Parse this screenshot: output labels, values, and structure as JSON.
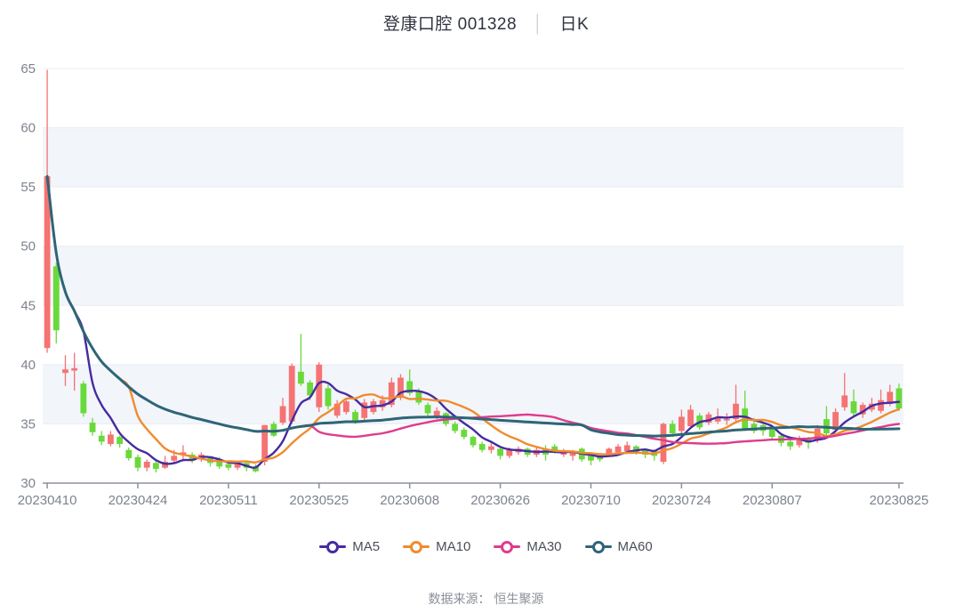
{
  "title": {
    "stock": "登康口腔 001328",
    "separator": "│",
    "kind": "日K"
  },
  "footer": {
    "text": "数据来源： 恒生聚源"
  },
  "chart_data": {
    "type": "candlestick",
    "title": "登康口腔 001328 日K",
    "up_color": "#f57373",
    "down_color": "#69d93b",
    "band_color": "#f2f5fa",
    "gridline_color": "#e9edf4",
    "axis_color": "#8b919b",
    "label_color": "#7d838d",
    "grid_bands": true,
    "legend_position": "bottom",
    "y_axis": {
      "min": 30,
      "max": 65,
      "step": 5
    },
    "x_ticks": [
      {
        "index": 0,
        "label": "20230410"
      },
      {
        "index": 10,
        "label": "20230424"
      },
      {
        "index": 20,
        "label": "20230511"
      },
      {
        "index": 30,
        "label": "20230525"
      },
      {
        "index": 40,
        "label": "20230608"
      },
      {
        "index": 50,
        "label": "20230626"
      },
      {
        "index": 60,
        "label": "20230710"
      },
      {
        "index": 70,
        "label": "20230724"
      },
      {
        "index": 80,
        "label": "20230807"
      },
      {
        "index": 94,
        "label": "20230825"
      }
    ],
    "ma": [
      {
        "label": "MA5",
        "period": 5,
        "color": "#472ba0"
      },
      {
        "label": "MA10",
        "period": 10,
        "color": "#ef8c2f"
      },
      {
        "label": "MA30",
        "period": 30,
        "color": "#dd3d8d"
      },
      {
        "label": "MA60",
        "period": 60,
        "color": "#2e6577"
      }
    ],
    "ma_note": "moving averages computed from close with expanding window at series start",
    "dates": [
      "20230410",
      "20230411",
      "20230412",
      "20230413",
      "20230414",
      "20230417",
      "20230418",
      "20230419",
      "20230420",
      "20230421",
      "20230424",
      "20230425",
      "20230426",
      "20230427",
      "20230428",
      "20230504",
      "20230505",
      "20230508",
      "20230509",
      "20230510",
      "20230511",
      "20230512",
      "20230515",
      "20230516",
      "20230517",
      "20230518",
      "20230519",
      "20230522",
      "20230523",
      "20230524",
      "20230525",
      "20230526",
      "20230529",
      "20230530",
      "20230531",
      "20230601",
      "20230602",
      "20230605",
      "20230606",
      "20230607",
      "20230608",
      "20230609",
      "20230612",
      "20230613",
      "20230614",
      "20230615",
      "20230616",
      "20230619",
      "20230620",
      "20230621",
      "20230626",
      "20230627",
      "20230628",
      "20230629",
      "20230630",
      "20230703",
      "20230704",
      "20230705",
      "20230706",
      "20230707",
      "20230710",
      "20230711",
      "20230712",
      "20230713",
      "20230714",
      "20230717",
      "20230718",
      "20230719",
      "20230720",
      "20230721",
      "20230724",
      "20230725",
      "20230726",
      "20230727",
      "20230728",
      "20230731",
      "20230801",
      "20230802",
      "20230803",
      "20230804",
      "20230807",
      "20230808",
      "20230809",
      "20230810",
      "20230811",
      "20230814",
      "20230815",
      "20230816",
      "20230817",
      "20230818",
      "20230821",
      "20230822",
      "20230823",
      "20230824",
      "20230825"
    ],
    "open": [
      41.4,
      48.3,
      39.3,
      39.5,
      38.4,
      35.1,
      34.0,
      33.3,
      33.9,
      32.8,
      32.2,
      31.3,
      31.7,
      31.3,
      31.9,
      32.4,
      32.4,
      32.0,
      32.1,
      32.0,
      31.6,
      31.3,
      31.7,
      31.4,
      31.8,
      35.0,
      35.1,
      35.2,
      39.4,
      38.5,
      36.4,
      38.0,
      35.7,
      36.0,
      36.0,
      35.5,
      36.0,
      36.4,
      36.6,
      37.2,
      38.6,
      37.8,
      36.6,
      35.6,
      35.9,
      35.0,
      34.5,
      33.9,
      33.3,
      32.8,
      32.9,
      32.3,
      32.6,
      32.9,
      32.4,
      32.9,
      33.1,
      32.4,
      32.3,
      32.9,
      32.4,
      32.3,
      32.4,
      32.6,
      32.7,
      33.1,
      32.8,
      32.7,
      31.8,
      35.0,
      34.4,
      34.8,
      35.7,
      35.1,
      35.2,
      35.3,
      35.4,
      36.3,
      35.0,
      34.9,
      34.6,
      34.0,
      33.5,
      33.2,
      33.8,
      33.6,
      35.4,
      34.5,
      36.4,
      36.9,
      35.8,
      36.2,
      36.1,
      36.7,
      38.0
    ],
    "close": [
      55.9,
      42.9,
      39.6,
      39.7,
      35.9,
      34.3,
      33.5,
      34.1,
      33.3,
      32.1,
      31.3,
      31.8,
      31.2,
      31.8,
      32.3,
      32.6,
      31.9,
      32.4,
      31.7,
      31.4,
      31.3,
      31.6,
      31.3,
      31.0,
      34.9,
      34.0,
      36.5,
      39.9,
      38.4,
      37.4,
      40.0,
      36.5,
      36.7,
      36.9,
      35.2,
      36.8,
      36.9,
      37.0,
      38.5,
      38.9,
      37.6,
      36.8,
      35.9,
      36.1,
      35.0,
      34.4,
      33.9,
      33.2,
      32.8,
      33.1,
      32.3,
      32.8,
      32.9,
      32.4,
      32.8,
      32.4,
      32.7,
      32.7,
      32.6,
      32.0,
      31.9,
      32.0,
      32.9,
      33.1,
      33.2,
      32.6,
      32.4,
      32.3,
      35.0,
      34.2,
      35.6,
      36.2,
      34.7,
      35.8,
      35.5,
      35.4,
      36.7,
      34.6,
      34.4,
      34.4,
      33.9,
      33.4,
      33.1,
      33.8,
      33.4,
      34.6,
      34.2,
      36.0,
      37.4,
      35.9,
      36.6,
      36.7,
      37.0,
      37.7,
      36.3
    ],
    "high": [
      64.9,
      48.6,
      40.8,
      41.0,
      38.6,
      35.5,
      34.4,
      34.4,
      34.0,
      33.0,
      32.4,
      32.0,
      31.9,
      32.3,
      32.8,
      33.2,
      32.6,
      32.6,
      32.3,
      32.2,
      31.8,
      31.8,
      31.9,
      31.6,
      34.9,
      35.2,
      37.2,
      40.1,
      42.6,
      38.7,
      40.2,
      38.3,
      37.0,
      37.2,
      36.2,
      37.1,
      37.1,
      37.4,
      38.9,
      39.2,
      39.6,
      38.0,
      36.8,
      36.4,
      36.0,
      35.2,
      34.7,
      34.0,
      33.5,
      33.4,
      33.0,
      33.0,
      33.1,
      33.0,
      33.0,
      33.2,
      33.3,
      32.9,
      32.8,
      33.0,
      32.5,
      32.5,
      33.0,
      33.3,
      33.5,
      33.2,
      32.9,
      32.8,
      35.1,
      35.3,
      36.2,
      36.6,
      35.9,
      36.0,
      36.3,
      35.9,
      38.3,
      37.8,
      35.5,
      35.0,
      34.7,
      34.2,
      33.7,
      34.0,
      33.9,
      34.9,
      36.5,
      36.3,
      39.3,
      37.9,
      36.8,
      37.2,
      37.9,
      38.3,
      38.4
    ],
    "low": [
      41.0,
      41.8,
      38.2,
      37.8,
      35.6,
      34.0,
      33.2,
      33.1,
      33.0,
      31.9,
      31.0,
      31.0,
      30.9,
      31.2,
      31.7,
      31.9,
      31.7,
      31.8,
      31.4,
      31.2,
      31.1,
      31.1,
      31.0,
      30.9,
      31.5,
      33.9,
      34.9,
      35.0,
      38.2,
      37.0,
      36.0,
      36.2,
      35.5,
      35.8,
      35.0,
      35.3,
      35.8,
      36.1,
      36.4,
      37.0,
      37.4,
      36.6,
      35.6,
      35.4,
      34.8,
      34.2,
      33.7,
      33.0,
      32.6,
      32.5,
      32.0,
      32.1,
      32.4,
      32.2,
      32.2,
      31.9,
      32.5,
      32.2,
      31.9,
      31.8,
      31.5,
      31.8,
      32.2,
      32.5,
      32.6,
      32.4,
      32.1,
      31.9,
      31.6,
      33.9,
      34.2,
      34.6,
      34.5,
      34.9,
      35.0,
      34.9,
      35.2,
      34.4,
      34.2,
      34.0,
      33.6,
      33.1,
      32.8,
      33.0,
      32.9,
      33.4,
      34.0,
      34.3,
      36.1,
      35.7,
      35.5,
      36.0,
      35.9,
      36.5,
      36.1
    ]
  }
}
